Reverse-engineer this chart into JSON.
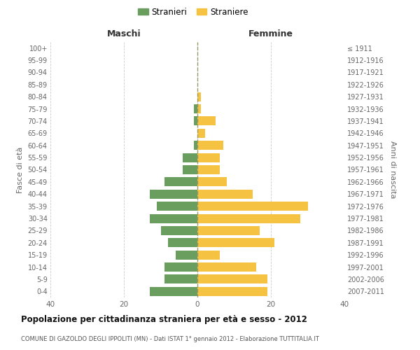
{
  "age_groups": [
    "0-4",
    "5-9",
    "10-14",
    "15-19",
    "20-24",
    "25-29",
    "30-34",
    "35-39",
    "40-44",
    "45-49",
    "50-54",
    "55-59",
    "60-64",
    "65-69",
    "70-74",
    "75-79",
    "80-84",
    "85-89",
    "90-94",
    "95-99",
    "100+"
  ],
  "birth_years": [
    "2007-2011",
    "2002-2006",
    "1997-2001",
    "1992-1996",
    "1987-1991",
    "1982-1986",
    "1977-1981",
    "1972-1976",
    "1967-1971",
    "1962-1966",
    "1957-1961",
    "1952-1956",
    "1947-1951",
    "1942-1946",
    "1937-1941",
    "1932-1936",
    "1927-1931",
    "1922-1926",
    "1917-1921",
    "1912-1916",
    "≤ 1911"
  ],
  "maschi": [
    13,
    9,
    9,
    6,
    8,
    10,
    13,
    11,
    13,
    9,
    4,
    4,
    1,
    0,
    1,
    1,
    0,
    0,
    0,
    0,
    0
  ],
  "femmine": [
    19,
    19,
    16,
    6,
    21,
    17,
    28,
    30,
    15,
    8,
    6,
    6,
    7,
    2,
    5,
    1,
    1,
    0,
    0,
    0,
    0
  ],
  "color_maschi": "#6a9e5f",
  "color_femmine": "#f5c242",
  "background_color": "#ffffff",
  "grid_color": "#cccccc",
  "title": "Popolazione per cittadinanza straniera per età e sesso - 2012",
  "subtitle": "COMUNE DI GAZOLDO DEGLI IPPOLITI (MN) - Dati ISTAT 1° gennaio 2012 - Elaborazione TUTTITALIA.IT",
  "xlabel_left": "Maschi",
  "xlabel_right": "Femmine",
  "ylabel_left": "Fasce di età",
  "ylabel_right": "Anni di nascita",
  "legend_stranieri": "Stranieri",
  "legend_straniere": "Straniere",
  "xlim": 40,
  "bar_height": 0.75
}
